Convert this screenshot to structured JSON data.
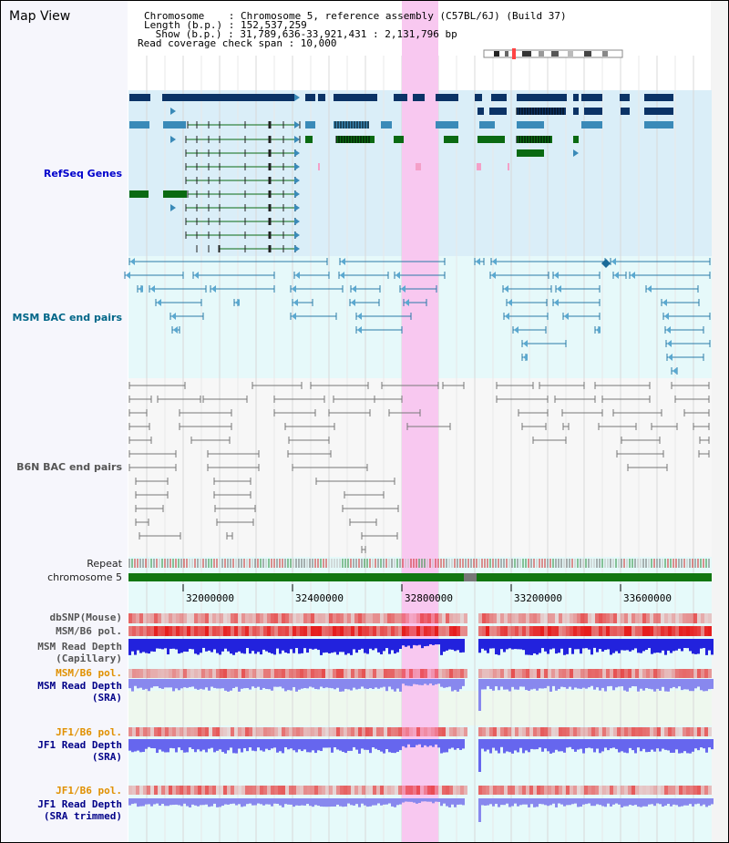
{
  "window": {
    "title": "Map View"
  },
  "header": {
    "chromosome_line": "Chromosome    : Chromosome 5, reference assembly (C57BL/6J) (Build 37)",
    "length_line": "Length (b.p.) : 152,537,259",
    "show_line": " Show (b.p.) : 31,789,636-33,921,431 : 2,131,796 bp",
    "coverage_line": "Read coverage check span : 10,000"
  },
  "tracks": {
    "refseq": "RefSeq Genes",
    "msm_bac": "MSM BAC end pairs",
    "b6n_bac": "B6N BAC end pairs",
    "repeat": "Repeat",
    "chromosome": "chromosome 5",
    "dbsnp": "dbSNP(Mouse)",
    "msm_b6_pol": "MSM/B6 pol.",
    "msm_depth_cap_1": "MSM Read Depth",
    "msm_depth_cap_2": "(Capillary)",
    "msm_b6_pol_sra": "MSM/B6 pol.",
    "msm_depth_sra_1": "MSM Read Depth",
    "msm_depth_sra_2": "(SRA)",
    "jf1_b6_pol": "JF1/B6 pol.",
    "jf1_depth_sra_1": "JF1 Read Depth",
    "jf1_depth_sra_2": "(SRA)",
    "jf1_b6_pol_2": "JF1/B6 pol.",
    "jf1_depth_trim_1": "JF1 Read Depth",
    "jf1_depth_trim_2": "(SRA trimmed)"
  },
  "axis": {
    "ticks": [
      "32000000",
      "32400000",
      "32800000",
      "33200000",
      "33600000"
    ]
  },
  "colors": {
    "refseq_bg": "#daeef8",
    "msm_bg": "#e6f9fa",
    "b6n_bg": "#f7f7f7",
    "lower_bg": "#e6fafa",
    "highlight": "#f8c8f0",
    "gene_dark": "#0b3366",
    "gene_mid": "#3a8ab8",
    "gene_green": "#0a6a12",
    "chromosome": "#117711"
  }
}
